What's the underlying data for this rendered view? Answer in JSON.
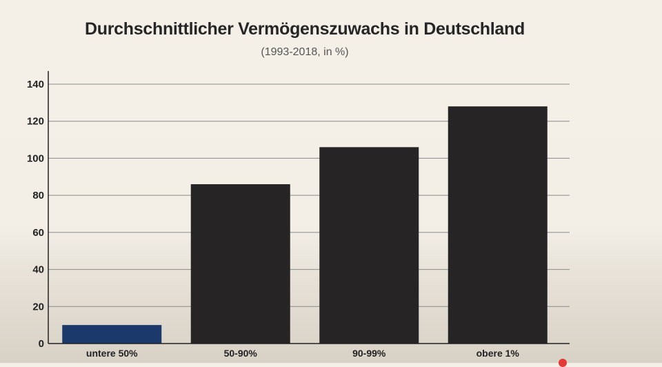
{
  "chart_data": {
    "type": "bar",
    "title": "Durchschnittlicher Vermögenszuwachs in Deutschland",
    "subtitle": "(1993-2018, in %)",
    "xlabel": "",
    "ylabel": "",
    "categories": [
      "untere 50%",
      "50-90%",
      "90-99%",
      "obere 1%"
    ],
    "values": [
      10,
      86,
      106,
      128
    ],
    "ylim": [
      0,
      140
    ],
    "yticks": [
      0,
      20,
      40,
      60,
      80,
      100,
      120,
      140
    ],
    "grid": true,
    "colors": [
      "#1b3a6b",
      "#262424",
      "#262424",
      "#262424"
    ]
  }
}
